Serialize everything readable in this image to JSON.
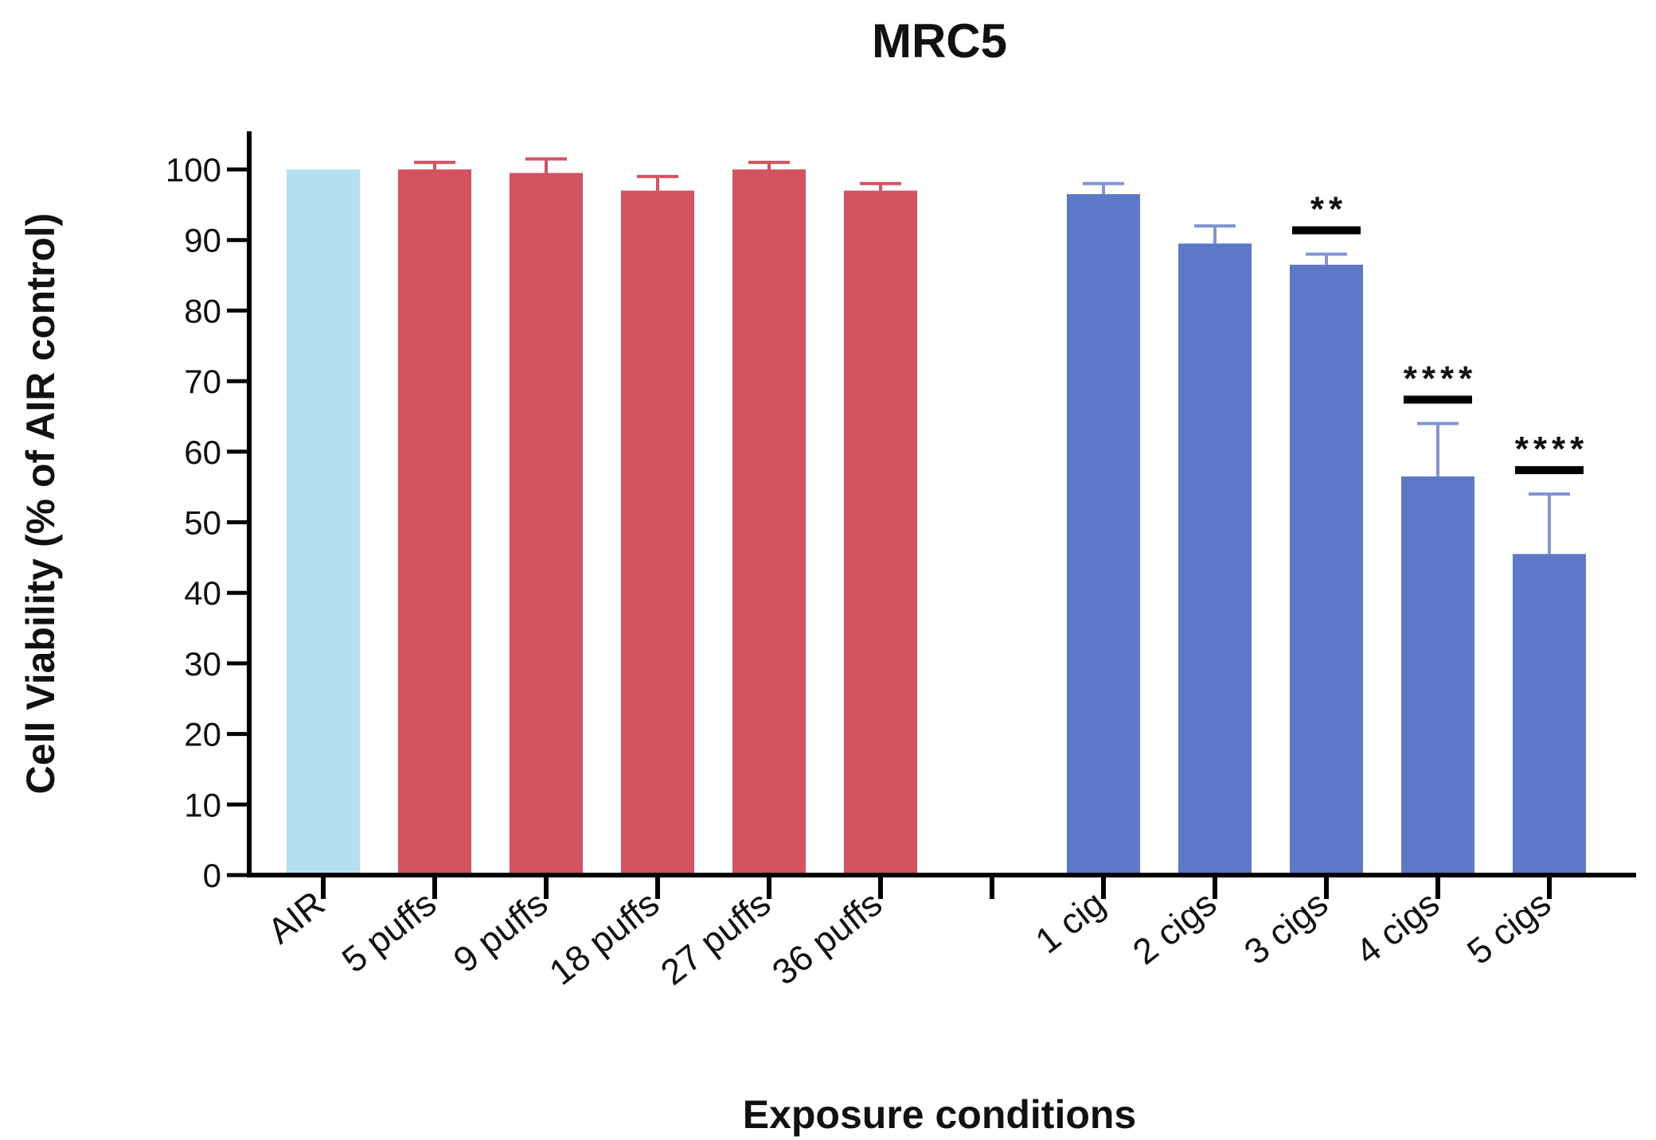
{
  "chart_data": {
    "type": "bar",
    "title": "MRC5",
    "xlabel": "Exposure conditions",
    "ylabel": "Cell Viability (%  of AIR control)",
    "ylim": [
      0,
      100
    ],
    "yticks": [
      0,
      10,
      20,
      30,
      40,
      50,
      60,
      70,
      80,
      90,
      100
    ],
    "grid": false,
    "legend": "none",
    "slots": 12,
    "bars": [
      {
        "category": "AIR",
        "slot": 0,
        "value": 100.0,
        "error": 0,
        "color": "#b3dff0",
        "significance": ""
      },
      {
        "category": "5 puffs",
        "slot": 1,
        "value": 100.0,
        "error": 1.0,
        "color": "#d35360",
        "significance": ""
      },
      {
        "category": "9 puffs",
        "slot": 2,
        "value": 99.5,
        "error": 2.0,
        "color": "#d35360",
        "significance": ""
      },
      {
        "category": "18 puffs",
        "slot": 3,
        "value": 97.0,
        "error": 2.0,
        "color": "#d35360",
        "significance": ""
      },
      {
        "category": "27 puffs",
        "slot": 4,
        "value": 100.0,
        "error": 1.0,
        "color": "#d35360",
        "significance": ""
      },
      {
        "category": "36 puffs",
        "slot": 5,
        "value": 97.0,
        "error": 1.0,
        "color": "#d35360",
        "significance": ""
      },
      {
        "category": "1 cig",
        "slot": 7,
        "value": 96.5,
        "error": 1.5,
        "color": "#5d78c6",
        "significance": ""
      },
      {
        "category": "2 cigs",
        "slot": 8,
        "value": 89.5,
        "error": 2.5,
        "color": "#5d78c6",
        "significance": ""
      },
      {
        "category": "3 cigs",
        "slot": 9,
        "value": 86.5,
        "error": 1.5,
        "color": "#5d78c6",
        "significance": "**"
      },
      {
        "category": "4 cigs",
        "slot": 10,
        "value": 56.5,
        "error": 7.5,
        "color": "#5d78c6",
        "significance": "****"
      },
      {
        "category": "5 cigs",
        "slot": 11,
        "value": 45.5,
        "error": 8.5,
        "color": "#5d78c6",
        "significance": "****"
      }
    ]
  }
}
